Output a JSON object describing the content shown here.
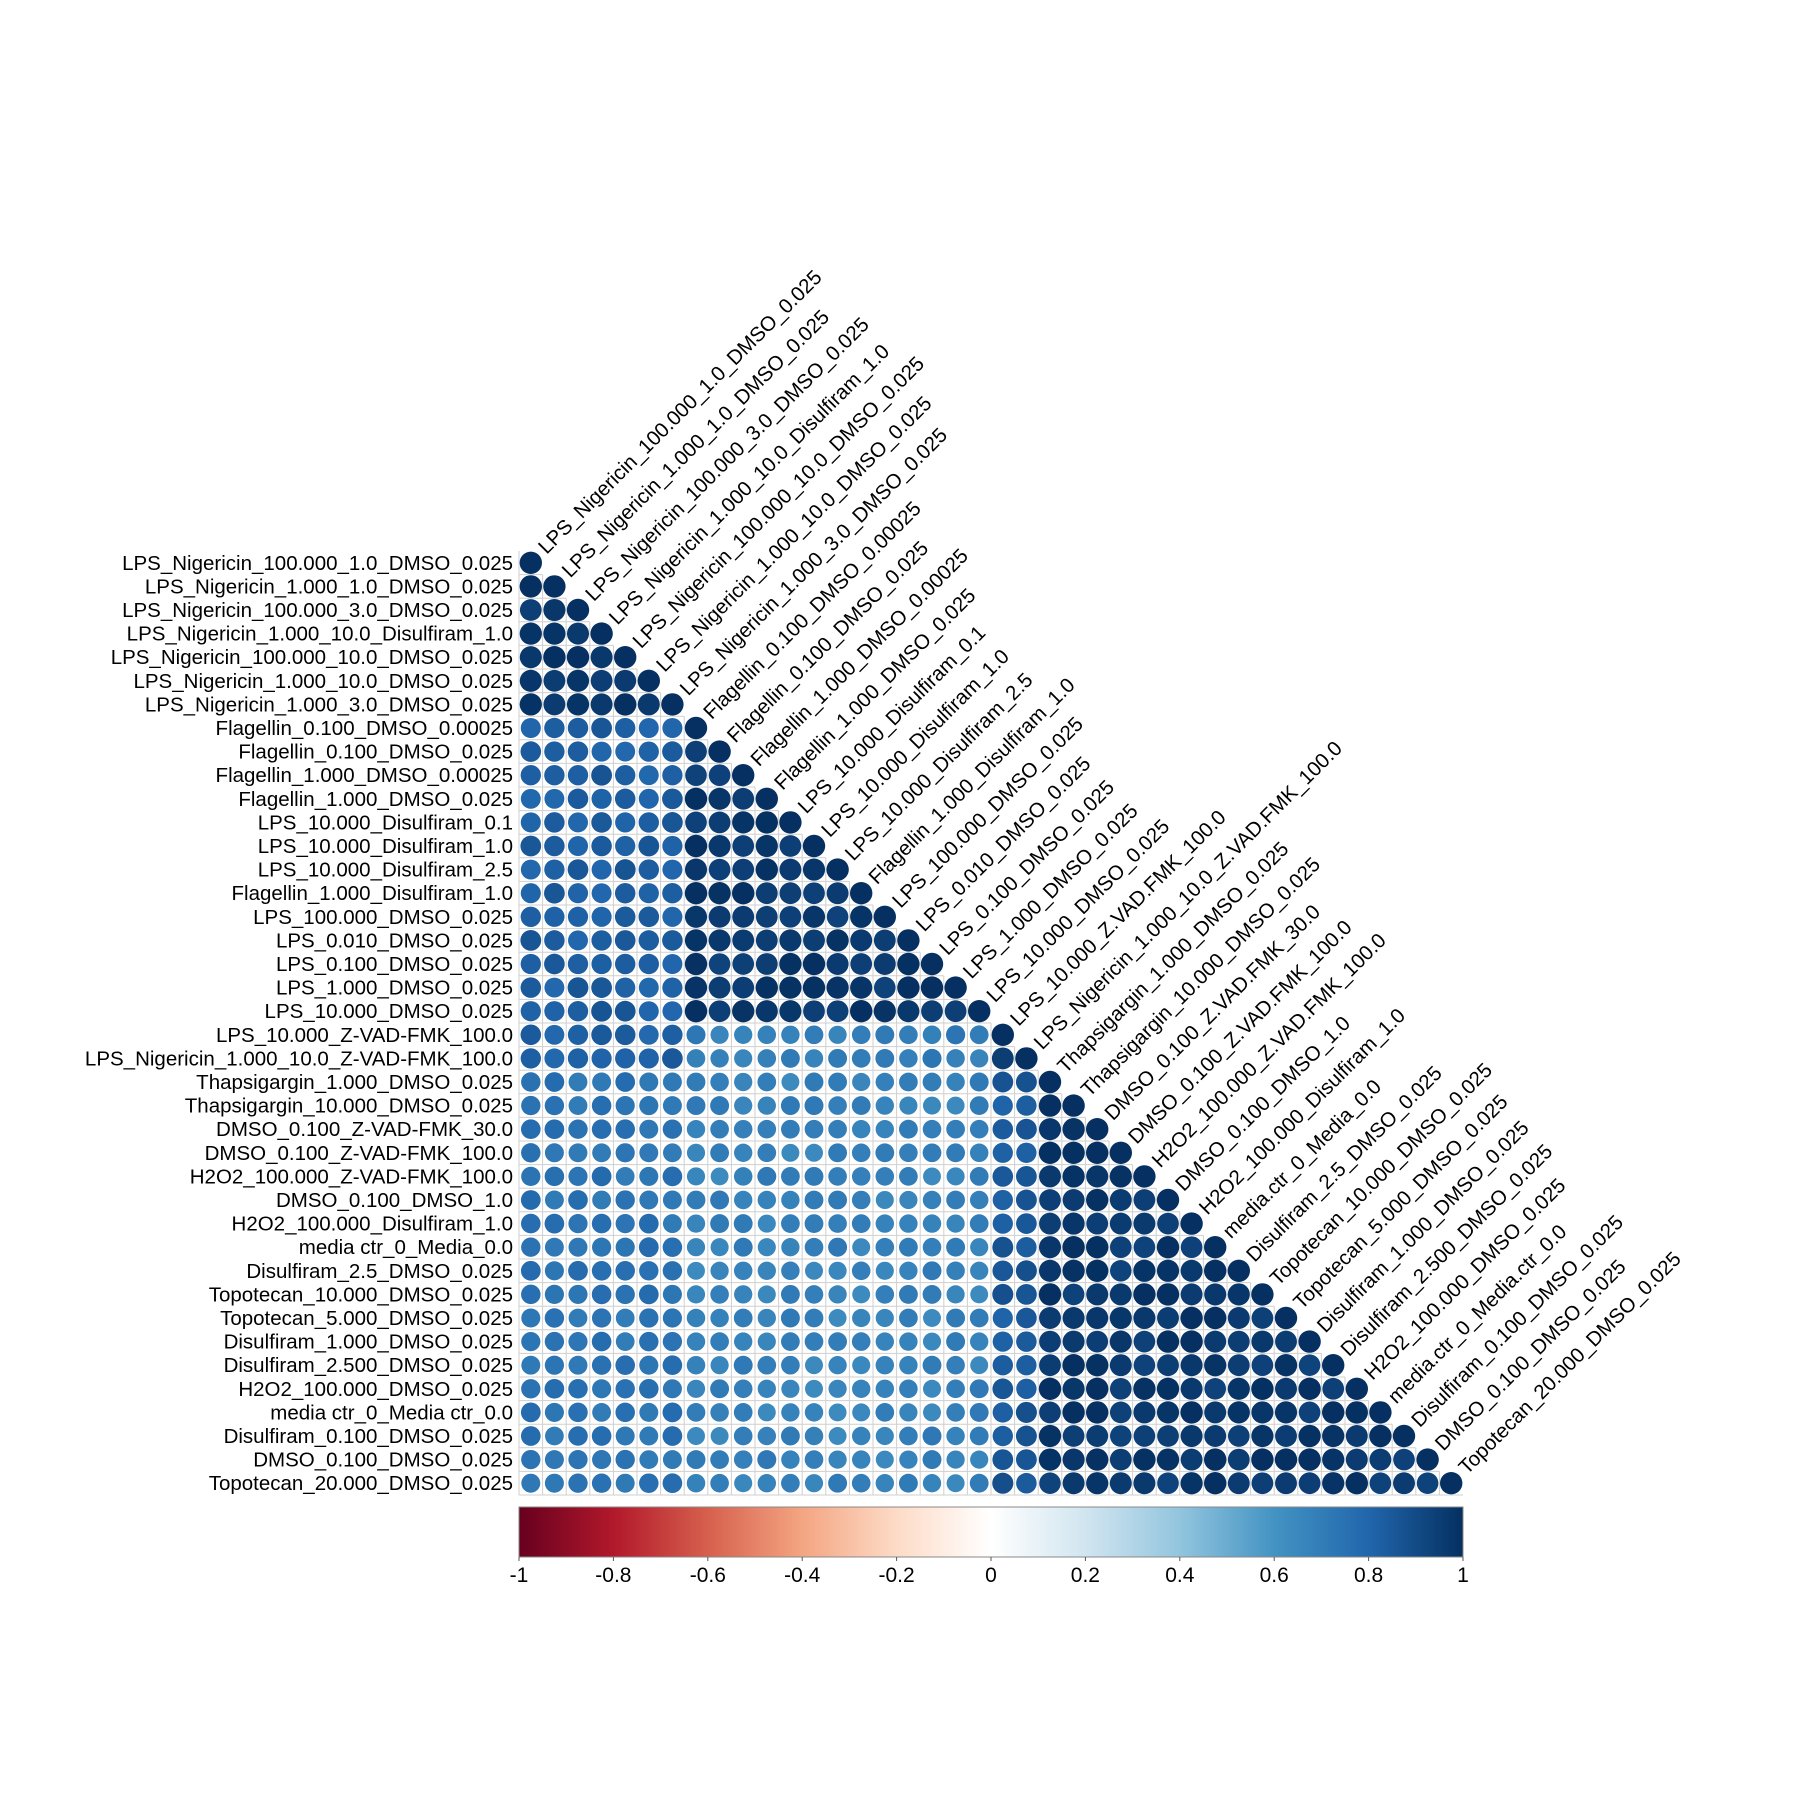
{
  "chart_data": {
    "type": "heatmap",
    "style": "correlation-circles-lower-triangle",
    "row_labels": [
      "LPS_Nigericin_100.000_1.0_DMSO_0.025",
      "LPS_Nigericin_1.000_1.0_DMSO_0.025",
      "LPS_Nigericin_100.000_3.0_DMSO_0.025",
      "LPS_Nigericin_1.000_10.0_Disulfiram_1.0",
      "LPS_Nigericin_100.000_10.0_DMSO_0.025",
      "LPS_Nigericin_1.000_10.0_DMSO_0.025",
      "LPS_Nigericin_1.000_3.0_DMSO_0.025",
      "Flagellin_0.100_DMSO_0.00025",
      "Flagellin_0.100_DMSO_0.025",
      "Flagellin_1.000_DMSO_0.00025",
      "Flagellin_1.000_DMSO_0.025",
      "LPS_10.000_Disulfiram_0.1",
      "LPS_10.000_Disulfiram_1.0",
      "LPS_10.000_Disulfiram_2.5",
      "Flagellin_1.000_Disulfiram_1.0",
      "LPS_100.000_DMSO_0.025",
      "LPS_0.010_DMSO_0.025",
      "LPS_0.100_DMSO_0.025",
      "LPS_1.000_DMSO_0.025",
      "LPS_10.000_DMSO_0.025",
      "LPS_10.000_Z-VAD-FMK_100.0",
      "LPS_Nigericin_1.000_10.0_Z-VAD-FMK_100.0",
      "Thapsigargin_1.000_DMSO_0.025",
      "Thapsigargin_10.000_DMSO_0.025",
      "DMSO_0.100_Z-VAD-FMK_30.0",
      "DMSO_0.100_Z-VAD-FMK_100.0",
      "H2O2_100.000_Z-VAD-FMK_100.0",
      "DMSO_0.100_DMSO_1.0",
      "H2O2_100.000_Disulfiram_1.0",
      "media ctr_0_Media_0.0",
      "Disulfiram_2.5_DMSO_0.025",
      "Topotecan_10.000_DMSO_0.025",
      "Topotecan_5.000_DMSO_0.025",
      "Disulfiram_1.000_DMSO_0.025",
      "Disulfiram_2.500_DMSO_0.025",
      "H2O2_100.000_DMSO_0.025",
      "media ctr_0_Media ctr_0.0",
      "Disulfiram_0.100_DMSO_0.025",
      "DMSO_0.100_DMSO_0.025",
      "Topotecan_20.000_DMSO_0.025"
    ],
    "column_labels": [
      "LPS_Nigericin_100.000_1.0_DMSO_0.025",
      "LPS_Nigericin_1.000_1.0_DMSO_0.025",
      "LPS_Nigericin_100.000_3.0_DMSO_0.025",
      "LPS_Nigericin_1.000_10.0_Disulfiram_1.0",
      "LPS_Nigericin_100.000_10.0_DMSO_0.025",
      "LPS_Nigericin_1.000_10.0_DMSO_0.025",
      "LPS_Nigericin_1.000_3.0_DMSO_0.025",
      "Flagellin_0.100_DMSO_0.00025",
      "Flagellin_0.100_DMSO_0.025",
      "Flagellin_1.000_DMSO_0.00025",
      "Flagellin_1.000_DMSO_0.025",
      "LPS_10.000_Disulfiram_0.1",
      "LPS_10.000_Disulfiram_1.0",
      "LPS_10.000_Disulfiram_2.5",
      "Flagellin_1.000_Disulfiram_1.0",
      "LPS_100.000_DMSO_0.025",
      "LPS_0.010_DMSO_0.025",
      "LPS_0.100_DMSO_0.025",
      "LPS_1.000_DMSO_0.025",
      "LPS_10.000_DMSO_0.025",
      "LPS_10.000_Z.VAD.FMK_100.0",
      "LPS_Nigericin_1.000_10.0_Z.VAD.FMK_100.0",
      "Thapsigargin_1.000_DMSO_0.025",
      "Thapsigargin_10.000_DMSO_0.025",
      "DMSO_0.100_Z.VAD.FMK_30.0",
      "DMSO_0.100_Z.VAD.FMK_100.0",
      "H2O2_100.000_Z.VAD.FMK_100.0",
      "DMSO_0.100_DMSO_1.0",
      "H2O2_100.000_Disulfiram_1.0",
      "media.ctr_0_Media_0.0",
      "Disulfiram_2.5_DMSO_0.025",
      "Topotecan_10.000_DMSO_0.025",
      "Topotecan_5.000_DMSO_0.025",
      "Disulfiram_1.000_DMSO_0.025",
      "Disulfiram_2.500_DMSO_0.025",
      "H2O2_100.000_DMSO_0.025",
      "media.ctr_0_Media.ctr_0.0",
      "Disulfiram_0.100_DMSO_0.025",
      "DMSO_0.100_DMSO_0.025",
      "Topotecan_20.000_DMSO_0.025"
    ],
    "group_bounds": [
      0,
      7,
      20,
      22,
      40
    ],
    "block_values": [
      [
        0.98,
        0.83,
        0.82,
        0.74
      ],
      [
        0.83,
        0.97,
        0.7,
        0.68
      ],
      [
        0.82,
        0.7,
        0.95,
        0.85
      ],
      [
        0.74,
        0.68,
        0.85,
        0.97
      ]
    ],
    "colorbar": {
      "ticks": [
        "-1",
        "-0.8",
        "-0.6",
        "-0.4",
        "-0.2",
        "0",
        "0.2",
        "0.4",
        "0.6",
        "0.8",
        "1"
      ],
      "range": [
        -1,
        1
      ],
      "colors": [
        "#67001f",
        "#b2182b",
        "#d6604d",
        "#f4a582",
        "#fddbc7",
        "#ffffff",
        "#d1e5f0",
        "#92c5de",
        "#4393c3",
        "#2166ac",
        "#053061"
      ]
    }
  }
}
